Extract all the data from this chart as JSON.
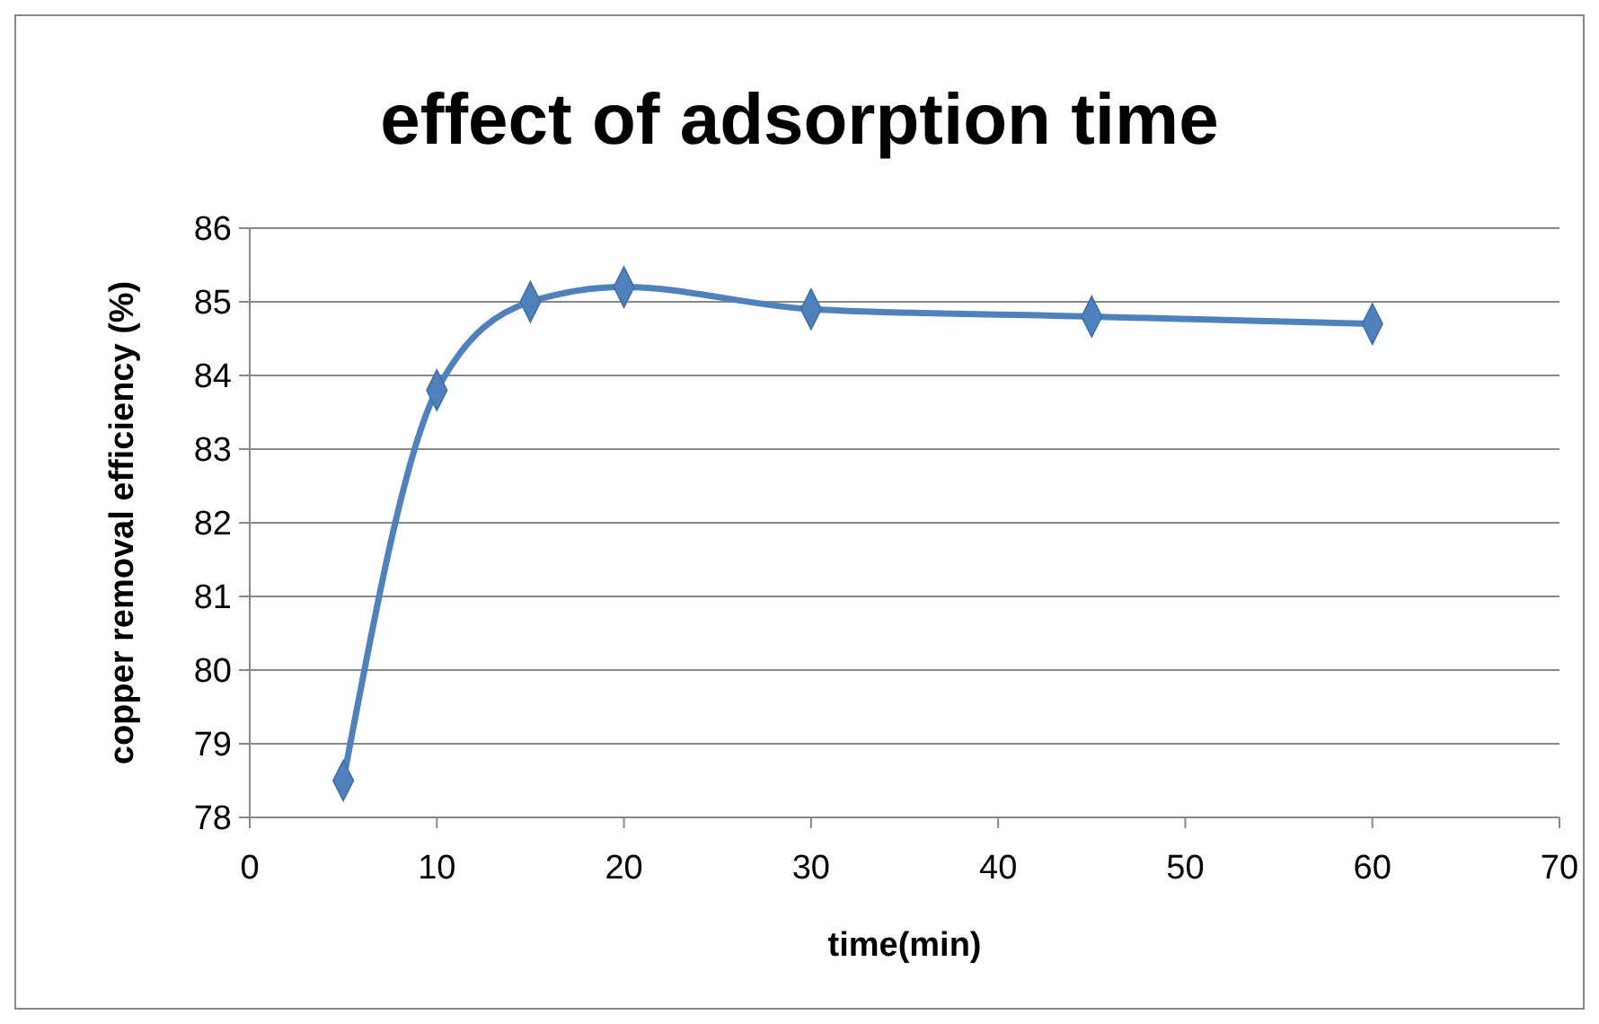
{
  "chart_data": {
    "type": "line",
    "title": "effect of adsorption time",
    "xlabel": "time(min)",
    "ylabel": "copper removal efficiency (%)",
    "x": [
      5,
      10,
      15,
      20,
      30,
      45,
      60
    ],
    "series": [
      {
        "color": "#4f81bd",
        "values": [
          78.5,
          83.8,
          85.0,
          85.2,
          84.9,
          84.8,
          84.7
        ]
      }
    ],
    "xlim": [
      0,
      70
    ],
    "xticks": [
      0,
      10,
      20,
      30,
      40,
      50,
      60,
      70
    ],
    "ylim": [
      78,
      86
    ],
    "yticks": [
      78,
      79,
      80,
      81,
      82,
      83,
      84,
      85,
      86
    ],
    "grid": "y",
    "marker": "diamond",
    "line_style": "solid"
  }
}
